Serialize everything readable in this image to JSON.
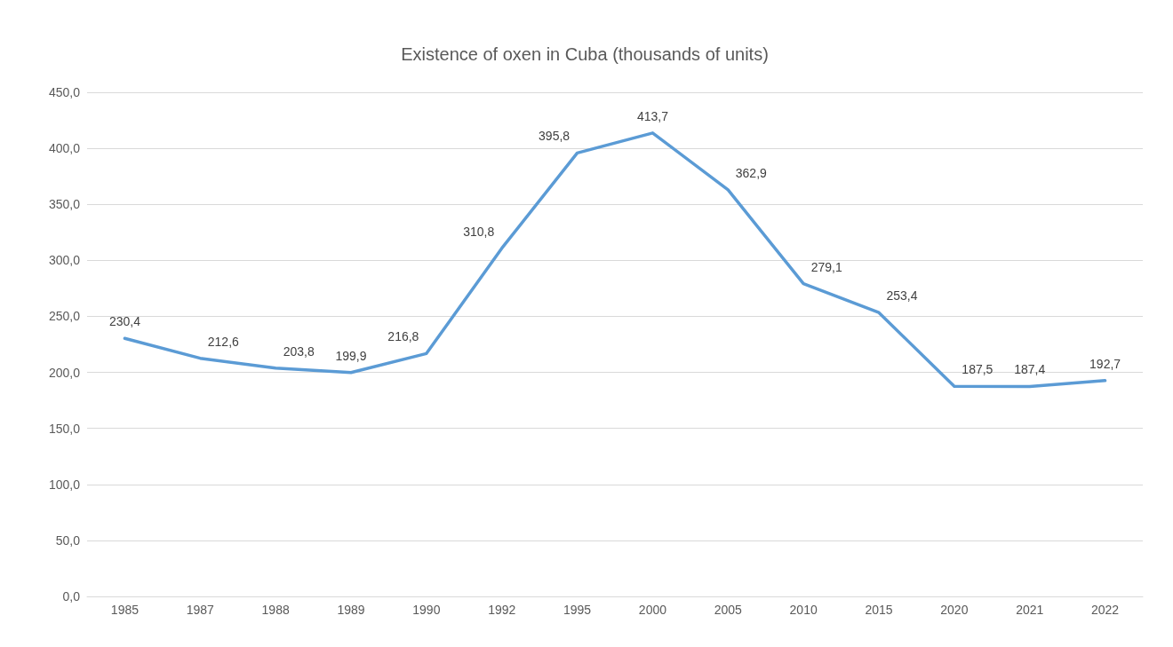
{
  "chart_data": {
    "type": "line",
    "title": "Existence of oxen in Cuba (thousands of units)",
    "categories": [
      "1985",
      "1987",
      "1988",
      "1989",
      "1990",
      "1992",
      "1995",
      "2000",
      "2005",
      "2010",
      "2015",
      "2020",
      "2021",
      "2022"
    ],
    "series": [
      {
        "color": "#5b9bd5",
        "values": [
          230.4,
          212.6,
          203.8,
          199.9,
          216.8,
          310.8,
          395.8,
          413.7,
          362.9,
          279.1,
          253.4,
          187.5,
          187.4,
          192.7
        ],
        "value_labels": [
          "230,4",
          "212,6",
          "203,8",
          "199,9",
          "216,8",
          "310,8",
          "395,8",
          "413,7",
          "362,9",
          "279,1",
          "253,4",
          "187,5",
          "187,4",
          "192,7"
        ]
      }
    ],
    "ylim": [
      0,
      450
    ],
    "yticks": [
      {
        "value": 0,
        "label": "0,0"
      },
      {
        "value": 50,
        "label": "50,0"
      },
      {
        "value": 100,
        "label": "100,0"
      },
      {
        "value": 150,
        "label": "150,0"
      },
      {
        "value": 200,
        "label": "200,0"
      },
      {
        "value": 250,
        "label": "250,0"
      },
      {
        "value": 300,
        "label": "300,0"
      },
      {
        "value": 350,
        "label": "350,0"
      },
      {
        "value": 400,
        "label": "400,0"
      },
      {
        "value": 450,
        "label": "450,0"
      }
    ],
    "grid": "y",
    "marker": "none",
    "line_style": "solid"
  }
}
